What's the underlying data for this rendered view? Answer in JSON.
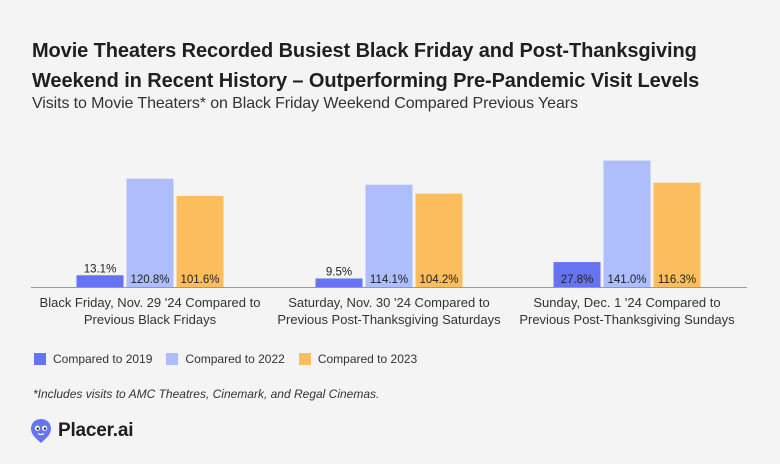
{
  "header": {
    "title": "Movie Theaters Recorded Busiest Black Friday and Post-Thanksgiving Weekend in Recent History – Outperforming Pre-Pandemic Visit Levels",
    "subtitle": "Visits to Movie Theaters* on Black Friday Weekend Compared Previous Years"
  },
  "footnote": "*Includes visits to AMC Theatres, Cinemark, and Regal Cinemas.",
  "brand": {
    "name": "Placer.ai",
    "icon": "placer-logo-icon"
  },
  "colors": {
    "2019": "#6674f2",
    "2022": "#aebdfc",
    "2023": "#fcbe5d",
    "axis": "#9a9a9a"
  },
  "chart_data": {
    "type": "bar",
    "categories": [
      [
        "Black Friday, Nov. 29 '24 Compared to",
        "Previous Black Fridays"
      ],
      [
        "Saturday, Nov. 30 '24 Compared to",
        "Previous Post-Thanksgiving Saturdays"
      ],
      [
        "Sunday, Dec. 1 '24 Compared to",
        "Previous Post-Thanksgiving Sundays"
      ]
    ],
    "series": [
      {
        "name": "Compared to 2019",
        "values": [
          13.1,
          9.5,
          27.8
        ],
        "labels": [
          "13.1%",
          "9.5%",
          "27.8%"
        ]
      },
      {
        "name": "Compared to 2022",
        "values": [
          120.8,
          114.1,
          141.0
        ],
        "labels": [
          "120.8%",
          "114.1%",
          "141.0%"
        ]
      },
      {
        "name": "Compared to 2023",
        "values": [
          101.6,
          104.2,
          116.3
        ],
        "labels": [
          "101.6%",
          "104.2%",
          "116.3%"
        ]
      }
    ],
    "ylim": [
      0,
      145
    ],
    "grid": false,
    "legend": "bottom-left"
  }
}
